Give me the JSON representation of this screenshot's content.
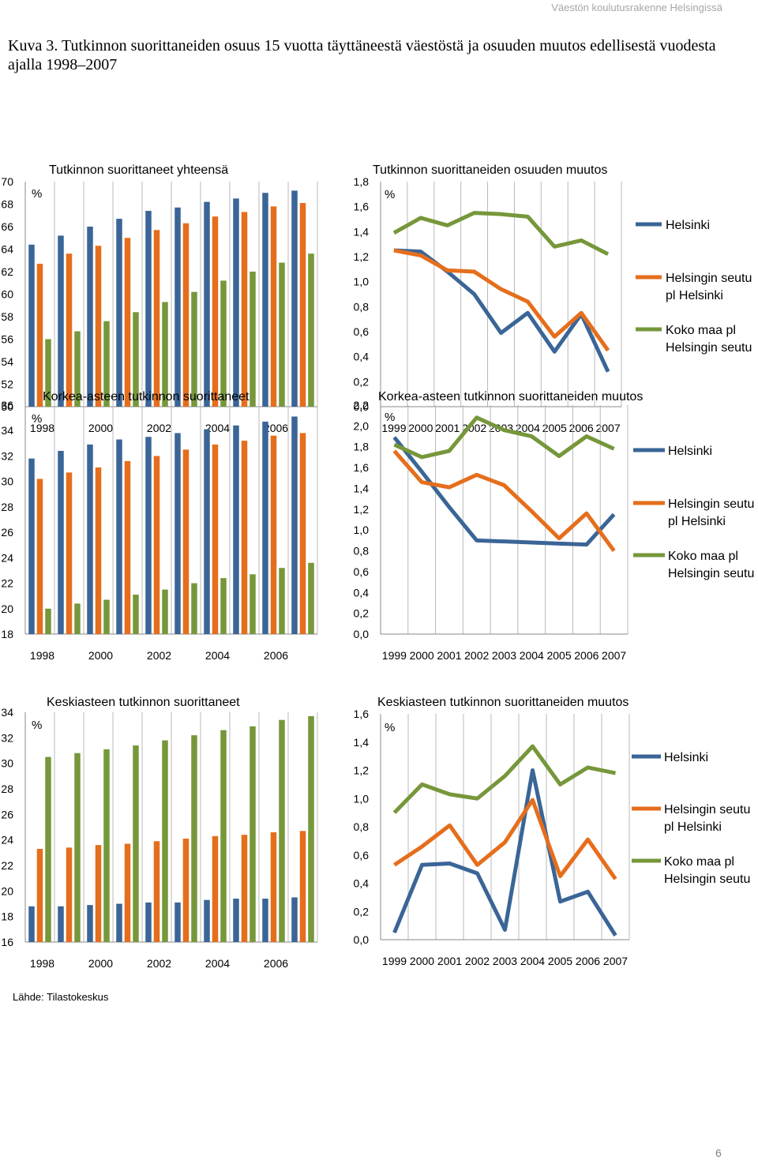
{
  "header": "Väestön koulutusrakenne Helsingissä",
  "figure_title": "Kuva 3. Tutkinnon suorittaneiden osuus 15 vuotta täyttäneestä väestöstä ja osuuden muutos edellisestä vuodesta ajalla 1998–2007",
  "source": "Lähde: Tilastokeskus",
  "page_number": "6",
  "colors": {
    "Helsinki": "#3a6596",
    "Helsingin seutu pl Helsinki": "#e56e1c",
    "Koko maa pl Helsingin seutu": "#76973a"
  },
  "legend": {
    "items": [
      [
        "Helsinki"
      ],
      [
        "Helsingin seutu",
        "pl Helsinki"
      ],
      [
        "Koko maa pl",
        "Helsingin seutu"
      ]
    ]
  },
  "chart_data": [
    {
      "type": "bar",
      "title": "Tutkinnon suorittaneet yhteensä",
      "ylabel": "%",
      "ylim": [
        50,
        70
      ],
      "yticks": [
        "50",
        "52",
        "54",
        "56",
        "58",
        "60",
        "62",
        "64",
        "66",
        "68",
        "70"
      ],
      "categories": [
        "1998",
        "1999",
        "2000",
        "2001",
        "2002",
        "2003",
        "2004",
        "2005",
        "2006",
        "2007"
      ],
      "xtick_labels": [
        "1998",
        "",
        "2000",
        "",
        "2002",
        "",
        "2004",
        "",
        "2006",
        ""
      ],
      "series": [
        {
          "name": "Helsinki",
          "values": [
            64.4,
            65.2,
            66.0,
            66.7,
            67.4,
            67.7,
            68.2,
            68.5,
            69.0,
            69.2
          ]
        },
        {
          "name": "Helsingin seutu pl Helsinki",
          "values": [
            62.7,
            63.6,
            64.3,
            65.0,
            65.7,
            66.3,
            66.9,
            67.3,
            67.8,
            68.1
          ]
        },
        {
          "name": "Koko maa pl Helsingin seutu",
          "values": [
            56.0,
            56.7,
            57.6,
            58.4,
            59.3,
            60.2,
            61.2,
            62.0,
            62.8,
            63.6
          ]
        }
      ]
    },
    {
      "type": "line",
      "title": "Tutkinnon suorittaneiden osuuden muutos",
      "ylabel": "%",
      "ylim": [
        0,
        1.8
      ],
      "yticks": [
        "0,0",
        "0,2",
        "0,4",
        "0,6",
        "0,8",
        "1,0",
        "1,2",
        "1,4",
        "1,6",
        "1,8"
      ],
      "categories": [
        "1999",
        "2000",
        "2001",
        "2002",
        "2003",
        "2004",
        "2005",
        "2006",
        "2007"
      ],
      "series": [
        {
          "name": "Helsinki",
          "values": [
            1.25,
            1.24,
            1.08,
            0.9,
            0.59,
            0.75,
            0.44,
            0.74,
            0.28
          ]
        },
        {
          "name": "Helsingin seutu pl Helsinki",
          "values": [
            1.25,
            1.21,
            1.09,
            1.08,
            0.94,
            0.84,
            0.56,
            0.75,
            0.45
          ]
        },
        {
          "name": "Koko maa pl Helsingin seutu",
          "values": [
            1.39,
            1.51,
            1.45,
            1.55,
            1.54,
            1.52,
            1.28,
            1.33,
            1.22
          ]
        }
      ]
    },
    {
      "type": "bar",
      "title": "Korkea-asteen tutkinnon suorittaneet",
      "ylabel": "%",
      "ylim": [
        18,
        36
      ],
      "yticks": [
        "18",
        "20",
        "22",
        "24",
        "26",
        "28",
        "30",
        "32",
        "34",
        "36"
      ],
      "categories": [
        "1998",
        "1999",
        "2000",
        "2001",
        "2002",
        "2003",
        "2004",
        "2005",
        "2006",
        "2007"
      ],
      "xtick_labels": [
        "1998",
        "",
        "2000",
        "",
        "2002",
        "",
        "2004",
        "",
        "2006",
        ""
      ],
      "series": [
        {
          "name": "Helsinki",
          "values": [
            31.8,
            32.4,
            32.9,
            33.3,
            33.5,
            33.8,
            34.1,
            34.4,
            34.7,
            35.1
          ]
        },
        {
          "name": "Helsingin seutu pl Helsinki",
          "values": [
            30.2,
            30.7,
            31.1,
            31.6,
            32.0,
            32.5,
            32.9,
            33.2,
            33.6,
            33.8
          ]
        },
        {
          "name": "Koko maa pl Helsingin seutu",
          "values": [
            20.0,
            20.4,
            20.7,
            21.1,
            21.5,
            22.0,
            22.4,
            22.7,
            23.2,
            23.6
          ]
        }
      ]
    },
    {
      "type": "line",
      "title": "Korkea-asteen tutkinnon suorittaneiden muutos",
      "ylabel": "%",
      "ylim": [
        0,
        2.2
      ],
      "yticks": [
        "0,0",
        "0,2",
        "0,4",
        "0,6",
        "0,8",
        "1,0",
        "1,2",
        "1,4",
        "1,6",
        "1,8",
        "2,0",
        "2,2"
      ],
      "categories": [
        "1999",
        "2000",
        "2001",
        "2002",
        "2003",
        "2004",
        "2005",
        "2006",
        "2007"
      ],
      "series": [
        {
          "name": "Helsinki",
          "values": [
            1.89,
            1.56,
            1.22,
            0.9,
            0.89,
            0.88,
            0.87,
            0.86,
            1.15
          ]
        },
        {
          "name": "Helsingin seutu pl Helsinki",
          "values": [
            1.76,
            1.46,
            1.41,
            1.53,
            1.43,
            1.18,
            0.92,
            1.16,
            0.8
          ]
        },
        {
          "name": "Koko maa pl Helsingin seutu",
          "values": [
            1.82,
            1.7,
            1.76,
            2.08,
            1.96,
            1.9,
            1.71,
            1.9,
            1.78
          ]
        }
      ]
    },
    {
      "type": "bar",
      "title": "Keskiasteen tutkinnon suorittaneet",
      "ylabel": "%",
      "ylim": [
        16,
        34
      ],
      "yticks": [
        "16",
        "18",
        "20",
        "22",
        "24",
        "26",
        "28",
        "30",
        "32",
        "34"
      ],
      "categories": [
        "1998",
        "1999",
        "2000",
        "2001",
        "2002",
        "2003",
        "2004",
        "2005",
        "2006",
        "2007"
      ],
      "xtick_labels": [
        "1998",
        "",
        "2000",
        "",
        "2002",
        "",
        "2004",
        "",
        "2006",
        ""
      ],
      "series": [
        {
          "name": "Helsinki",
          "values": [
            18.8,
            18.8,
            18.9,
            19.0,
            19.1,
            19.1,
            19.3,
            19.4,
            19.4,
            19.5
          ]
        },
        {
          "name": "Helsingin seutu pl Helsinki",
          "values": [
            23.3,
            23.4,
            23.6,
            23.7,
            23.9,
            24.1,
            24.3,
            24.4,
            24.6,
            24.7
          ]
        },
        {
          "name": "Koko maa pl Helsingin seutu",
          "values": [
            30.5,
            30.8,
            31.1,
            31.4,
            31.8,
            32.2,
            32.6,
            32.9,
            33.4,
            33.7
          ]
        }
      ]
    },
    {
      "type": "line",
      "title": "Keskiasteen tutkinnon suorittaneiden muutos",
      "ylabel": "%",
      "ylim": [
        0,
        1.6
      ],
      "yticks": [
        "0,0",
        "0,2",
        "0,4",
        "0,6",
        "0,8",
        "1,0",
        "1,2",
        "1,4",
        "1,6"
      ],
      "categories": [
        "1999",
        "2000",
        "2001",
        "2002",
        "2003",
        "2004",
        "2005",
        "2006",
        "2007"
      ],
      "series": [
        {
          "name": "Helsinki",
          "values": [
            0.05,
            0.53,
            0.54,
            0.47,
            0.07,
            1.2,
            0.27,
            0.34,
            0.03
          ]
        },
        {
          "name": "Helsingin seutu pl Helsinki",
          "values": [
            0.53,
            0.66,
            0.81,
            0.53,
            0.69,
            0.99,
            0.45,
            0.71,
            0.43
          ]
        },
        {
          "name": "Koko maa pl Helsingin seutu",
          "values": [
            0.9,
            1.1,
            1.03,
            1.0,
            1.16,
            1.37,
            1.1,
            1.22,
            1.18
          ]
        }
      ]
    }
  ]
}
